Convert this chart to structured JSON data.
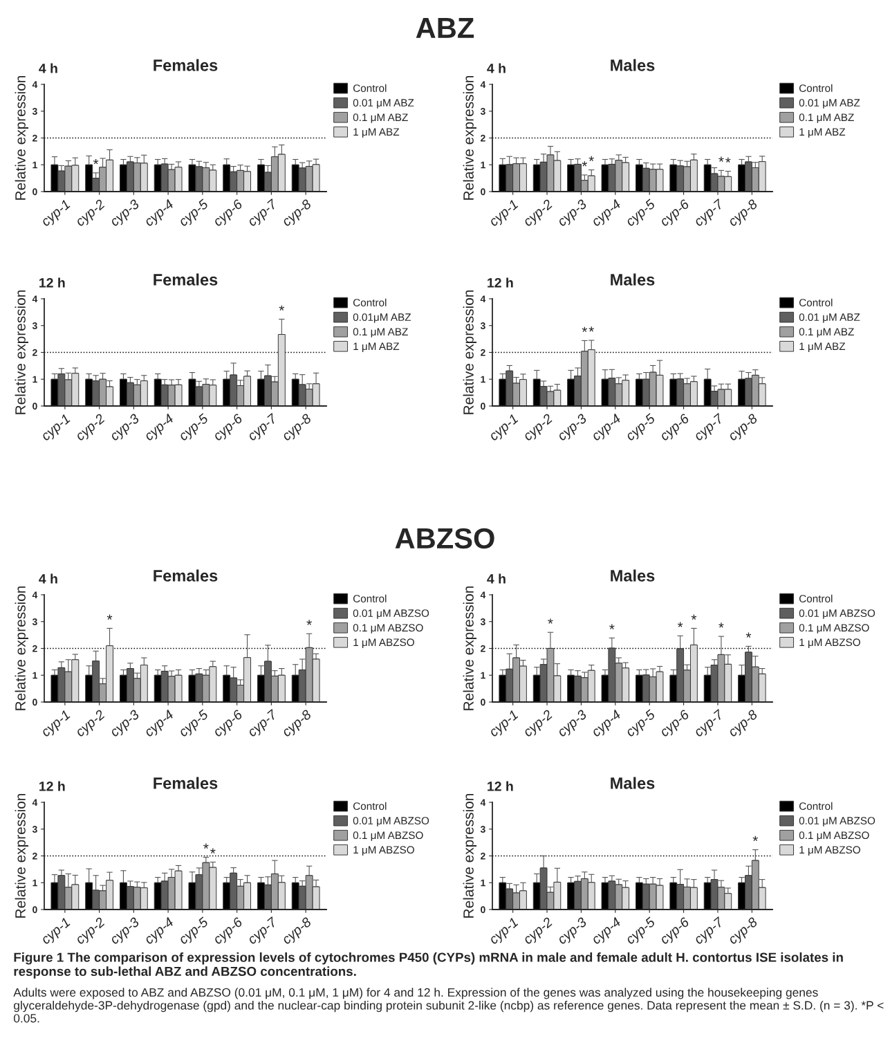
{
  "chart_data": [
    {
      "type": "bar",
      "title": "Females",
      "subtitle": "4 h",
      "ylabel": "Relative expression",
      "annotations": [
        "ABZ"
      ],
      "categories": [
        "cyp-1",
        "cyp-2",
        "cyp-3",
        "cyp-4",
        "cyp-5",
        "cyp-6",
        "cyp-7",
        "cyp-8"
      ],
      "ylim": [
        0,
        4
      ],
      "yticks": [
        0,
        1,
        2,
        3,
        4
      ],
      "grid": false,
      "legend": "right",
      "ref_lines": [
        {
          "axis": "y",
          "value": 2,
          "line_style": "dotted",
          "color": "#000000"
        }
      ],
      "series": [
        {
          "name": "Control",
          "color": "#000000",
          "values": [
            1,
            1,
            1,
            1,
            1,
            1,
            1,
            1
          ],
          "errors": [
            0.3,
            0.33,
            0.2,
            0.2,
            0.2,
            0.22,
            0.2,
            0.2
          ]
        },
        {
          "name": "0.01 μM ABZ",
          "color": "#5f5f5f",
          "values": [
            0.77,
            0.5,
            1.11,
            1.03,
            0.93,
            0.74,
            0.72,
            0.88
          ],
          "errors": [
            0.2,
            0.2,
            0.2,
            0.2,
            0.2,
            0.2,
            0.25,
            0.2
          ],
          "value_labels": [
            null,
            "*",
            null,
            null,
            null,
            null,
            null,
            null
          ]
        },
        {
          "name": "0.1 μM ABZ",
          "color": "#a0a0a0",
          "values": [
            0.95,
            0.91,
            1.07,
            0.82,
            0.89,
            0.79,
            1.3,
            0.94
          ],
          "errors": [
            0.2,
            0.33,
            0.2,
            0.2,
            0.2,
            0.2,
            0.37,
            0.2
          ]
        },
        {
          "name": "1 μM ABZ",
          "color": "#d9d9d9",
          "values": [
            0.98,
            1.18,
            1.06,
            0.91,
            0.8,
            0.75,
            1.39,
            1.01
          ],
          "errors": [
            0.28,
            0.38,
            0.3,
            0.2,
            0.2,
            0.2,
            0.35,
            0.2
          ]
        }
      ]
    },
    {
      "type": "bar",
      "title": "Males",
      "subtitle": "4 h",
      "ylabel": "Relative expression",
      "categories": [
        "cyp-1",
        "cyp-2",
        "cyp-3",
        "cyp-4",
        "cyp-5",
        "cyp-6",
        "cyp-7",
        "cyp-8"
      ],
      "ylim": [
        0,
        4
      ],
      "yticks": [
        0,
        1,
        2,
        3,
        4
      ],
      "grid": false,
      "legend": "right",
      "ref_lines": [
        {
          "axis": "y",
          "value": 2,
          "line_style": "dotted",
          "color": "#000000"
        }
      ],
      "series": [
        {
          "name": "Control",
          "color": "#000000",
          "values": [
            1,
            1,
            1,
            1,
            1,
            1,
            1,
            1
          ],
          "errors": [
            0.23,
            0.2,
            0.2,
            0.2,
            0.2,
            0.2,
            0.2,
            0.2
          ]
        },
        {
          "name": "0.01 μM ABZ",
          "color": "#5f5f5f",
          "values": [
            1.01,
            1.1,
            1.02,
            1.02,
            0.87,
            0.96,
            0.67,
            1.11
          ],
          "errors": [
            0.3,
            0.3,
            0.2,
            0.2,
            0.2,
            0.2,
            0.22,
            0.2
          ]
        },
        {
          "name": "0.1 μM ABZ",
          "color": "#a0a0a0",
          "values": [
            1.04,
            1.37,
            0.42,
            1.17,
            0.83,
            0.93,
            0.57,
            0.89
          ],
          "errors": [
            0.22,
            0.32,
            0.2,
            0.2,
            0.2,
            0.2,
            0.22,
            0.2
          ],
          "value_labels": [
            null,
            null,
            "*",
            null,
            null,
            null,
            "*",
            null
          ]
        },
        {
          "name": "1 μM ABZ",
          "color": "#d9d9d9",
          "values": [
            1.04,
            1.16,
            0.59,
            1.08,
            0.83,
            1.18,
            0.56,
            1.12
          ],
          "errors": [
            0.22,
            0.33,
            0.22,
            0.2,
            0.2,
            0.22,
            0.2,
            0.2
          ],
          "value_labels": [
            null,
            null,
            "*",
            null,
            null,
            null,
            "*",
            null
          ]
        }
      ]
    },
    {
      "type": "bar",
      "title": "Females",
      "subtitle": "12 h",
      "ylabel": "Relative expression",
      "categories": [
        "cyp-1",
        "cyp-2",
        "cyp-3",
        "cyp-4",
        "cyp-5",
        "cyp-6",
        "cyp-7",
        "cyp-8"
      ],
      "ylim": [
        0,
        4
      ],
      "yticks": [
        0,
        1,
        2,
        3,
        4
      ],
      "grid": false,
      "legend": "right",
      "ref_lines": [
        {
          "axis": "y",
          "value": 2,
          "line_style": "dotted",
          "color": "#000000"
        }
      ],
      "series": [
        {
          "name": "Control",
          "color": "#000000",
          "values": [
            1,
            1,
            1,
            1,
            1,
            1,
            1,
            1
          ],
          "errors": [
            0.2,
            0.2,
            0.2,
            0.2,
            0.25,
            0.3,
            0.3,
            0.2
          ]
        },
        {
          "name": "0.01μM ABZ",
          "color": "#5f5f5f",
          "values": [
            1.2,
            0.94,
            0.87,
            0.79,
            0.72,
            1.16,
            1.13,
            0.8
          ],
          "errors": [
            0.2,
            0.2,
            0.2,
            0.2,
            0.2,
            0.44,
            0.4,
            0.37
          ]
        },
        {
          "name": "0.1 μM ABZ",
          "color": "#a0a0a0",
          "values": [
            0.98,
            1.0,
            0.79,
            0.78,
            0.81,
            0.76,
            0.9,
            0.63
          ],
          "errors": [
            0.25,
            0.22,
            0.2,
            0.2,
            0.2,
            0.2,
            0.2,
            0.2
          ]
        },
        {
          "name": "1 μM ABZ",
          "color": "#d9d9d9",
          "values": [
            1.22,
            0.72,
            0.94,
            0.79,
            0.78,
            1.11,
            2.67,
            0.83
          ],
          "errors": [
            0.2,
            0.22,
            0.2,
            0.2,
            0.2,
            0.2,
            0.57,
            0.4
          ],
          "value_labels": [
            null,
            null,
            null,
            null,
            null,
            null,
            "*",
            null
          ]
        }
      ]
    },
    {
      "type": "bar",
      "title": "Males",
      "subtitle": "12 h",
      "ylabel": "Relative expression",
      "categories": [
        "cyp-1",
        "cyp-2",
        "cyp-3",
        "cyp-4",
        "cyp-5",
        "cyp-6",
        "cyp-7",
        "cyp-8"
      ],
      "ylim": [
        0,
        4
      ],
      "yticks": [
        0,
        1,
        2,
        3,
        4
      ],
      "grid": false,
      "legend": "right",
      "ref_lines": [
        {
          "axis": "y",
          "value": 2,
          "line_style": "dotted",
          "color": "#000000"
        }
      ],
      "series": [
        {
          "name": "Control",
          "color": "#000000",
          "values": [
            1,
            1,
            1,
            1,
            1,
            1,
            1,
            1
          ],
          "errors": [
            0.2,
            0.33,
            0.33,
            0.35,
            0.2,
            0.2,
            0.38,
            0.3
          ]
        },
        {
          "name": "0.01 μM ABZ",
          "color": "#5f5f5f",
          "values": [
            1.31,
            0.73,
            1.12,
            1.04,
            1.0,
            1.01,
            0.55,
            1.03
          ],
          "errors": [
            0.2,
            0.2,
            0.3,
            0.32,
            0.25,
            0.2,
            0.2,
            0.22
          ]
        },
        {
          "name": "0.1 μM ABZ",
          "color": "#a0a0a0",
          "values": [
            0.85,
            0.54,
            2.04,
            0.83,
            1.26,
            0.83,
            0.62,
            1.15
          ],
          "errors": [
            0.22,
            0.2,
            0.4,
            0.23,
            0.25,
            0.2,
            0.2,
            0.2
          ],
          "value_labels": [
            null,
            null,
            "*",
            null,
            null,
            null,
            null,
            null
          ]
        },
        {
          "name": "1 μM ABZ",
          "color": "#d9d9d9",
          "values": [
            0.99,
            0.59,
            2.1,
            0.96,
            1.15,
            0.91,
            0.62,
            0.83
          ],
          "errors": [
            0.2,
            0.22,
            0.35,
            0.2,
            0.55,
            0.2,
            0.2,
            0.23
          ],
          "value_labels": [
            null,
            null,
            "*",
            null,
            null,
            null,
            null,
            null
          ]
        }
      ]
    },
    {
      "type": "bar",
      "title": "Females",
      "subtitle": "4 h",
      "ylabel": "Relative expression",
      "annotations": [
        "ABZSO"
      ],
      "categories": [
        "cyp-1",
        "cyp-2",
        "cyp-3",
        "cyp-4",
        "cyp-5",
        "cyp-6",
        "cyp-7",
        "cyp-8"
      ],
      "ylim": [
        0,
        4
      ],
      "yticks": [
        0,
        1,
        2,
        3,
        4
      ],
      "grid": false,
      "legend": "right",
      "ref_lines": [
        {
          "axis": "y",
          "value": 2,
          "line_style": "dotted",
          "color": "#000000"
        }
      ],
      "series": [
        {
          "name": "Control",
          "color": "#000000",
          "values": [
            1,
            1,
            1,
            1,
            1,
            1,
            1,
            1
          ],
          "errors": [
            0.2,
            0.35,
            0.2,
            0.2,
            0.2,
            0.35,
            0.35,
            0.4
          ]
        },
        {
          "name": "0.01 μM ABZSO",
          "color": "#5f5f5f",
          "values": [
            1.28,
            1.53,
            1.25,
            1.15,
            1.05,
            0.9,
            1.52,
            1.2
          ],
          "errors": [
            0.22,
            0.37,
            0.2,
            0.2,
            0.2,
            0.4,
            0.6,
            0.4
          ]
        },
        {
          "name": "0.1 μM ABZSO",
          "color": "#a0a0a0",
          "values": [
            1.13,
            0.68,
            0.88,
            0.96,
            1.0,
            0.63,
            0.97,
            2.03
          ],
          "errors": [
            0.45,
            0.2,
            0.2,
            0.2,
            0.2,
            0.2,
            0.2,
            0.52
          ],
          "value_labels": [
            null,
            null,
            null,
            null,
            null,
            null,
            null,
            "*"
          ]
        },
        {
          "name": "1 μM ABZSO",
          "color": "#d9d9d9",
          "values": [
            1.58,
            2.1,
            1.38,
            1.0,
            1.32,
            1.66,
            1.0,
            1.6
          ],
          "errors": [
            0.2,
            0.65,
            0.27,
            0.2,
            0.2,
            0.85,
            0.25,
            0.2
          ],
          "value_labels": [
            null,
            "*",
            null,
            null,
            null,
            null,
            null,
            null
          ]
        }
      ]
    },
    {
      "type": "bar",
      "title": "Males",
      "subtitle": "4 h",
      "ylabel": "Relative expression",
      "categories": [
        "cyp-1",
        "cyp-2",
        "cyp-3",
        "cyp-4",
        "cyp-5",
        "cyp-6",
        "cyp-7",
        "cyp-8"
      ],
      "ylim": [
        0,
        4
      ],
      "yticks": [
        0,
        1,
        2,
        3,
        4
      ],
      "grid": false,
      "legend": "right",
      "ref_lines": [
        {
          "axis": "y",
          "value": 2,
          "line_style": "dotted",
          "color": "#000000"
        }
      ],
      "series": [
        {
          "name": "Control",
          "color": "#000000",
          "values": [
            1,
            1,
            1,
            1,
            1,
            1,
            1,
            1
          ],
          "errors": [
            0.2,
            0.3,
            0.2,
            0.2,
            0.2,
            0.2,
            0.3,
            0.38
          ]
        },
        {
          "name": "0.01 μM ABZSO",
          "color": "#5f5f5f",
          "values": [
            1.23,
            1.4,
            0.97,
            2.01,
            1.01,
            1.99,
            1.38,
            1.86
          ],
          "errors": [
            0.57,
            0.2,
            0.2,
            0.38,
            0.2,
            0.48,
            0.2,
            0.22
          ],
          "value_labels": [
            null,
            null,
            null,
            "*",
            null,
            "*",
            null,
            "*"
          ]
        },
        {
          "name": "0.1 μM ABZSO",
          "color": "#a0a0a0",
          "values": [
            1.65,
            2.0,
            0.91,
            1.45,
            0.94,
            1.19,
            1.77,
            1.31
          ],
          "errors": [
            0.48,
            0.6,
            0.2,
            0.2,
            0.3,
            0.2,
            0.68,
            0.4
          ],
          "value_labels": [
            null,
            "*",
            null,
            null,
            null,
            null,
            "*",
            null
          ]
        },
        {
          "name": "1 μM ABZSO",
          "color": "#d9d9d9",
          "values": [
            1.34,
            0.98,
            1.18,
            1.27,
            1.13,
            2.13,
            1.41,
            1.05
          ],
          "errors": [
            0.22,
            0.45,
            0.2,
            0.2,
            0.2,
            0.62,
            0.35,
            0.2
          ],
          "value_labels": [
            null,
            null,
            null,
            null,
            null,
            "*",
            null,
            null
          ]
        }
      ]
    },
    {
      "type": "bar",
      "title": "Females",
      "subtitle": "12 h",
      "ylabel": "Relative expression",
      "categories": [
        "cyp-1",
        "cyp-2",
        "cyp-3",
        "cyp-4",
        "cyp-5",
        "cyp-6",
        "cyp-7",
        "cyp-8"
      ],
      "ylim": [
        0,
        4
      ],
      "yticks": [
        0,
        1,
        2,
        3,
        4
      ],
      "grid": false,
      "legend": "right",
      "ref_lines": [
        {
          "axis": "y",
          "value": 2,
          "line_style": "dotted",
          "color": "#000000"
        }
      ],
      "series": [
        {
          "name": "Control",
          "color": "#000000",
          "values": [
            1,
            1,
            1,
            1,
            1,
            1,
            1,
            1
          ],
          "errors": [
            0.3,
            0.52,
            0.45,
            0.2,
            0.4,
            0.2,
            0.2,
            0.2
          ]
        },
        {
          "name": "0.01 μM ABZSO",
          "color": "#5f5f5f",
          "values": [
            1.27,
            0.72,
            0.86,
            1.06,
            1.3,
            1.36,
            0.92,
            0.87
          ],
          "errors": [
            0.2,
            0.55,
            0.2,
            0.3,
            0.25,
            0.2,
            0.3,
            0.2
          ]
        },
        {
          "name": "0.1 μM ABZSO",
          "color": "#a0a0a0",
          "values": [
            0.83,
            0.7,
            0.83,
            1.2,
            1.75,
            0.87,
            1.33,
            1.27
          ],
          "errors": [
            0.5,
            0.2,
            0.2,
            0.3,
            0.2,
            0.25,
            0.5,
            0.35
          ],
          "value_labels": [
            null,
            null,
            null,
            null,
            "*",
            null,
            null,
            null
          ]
        },
        {
          "name": "1 μM ABZSO",
          "color": "#d9d9d9",
          "values": [
            0.93,
            1.09,
            0.81,
            1.44,
            1.57,
            1.0,
            1.01,
            0.85
          ],
          "errors": [
            0.35,
            0.3,
            0.2,
            0.2,
            0.2,
            0.27,
            0.25,
            0.25
          ],
          "value_labels": [
            null,
            null,
            null,
            null,
            "*",
            null,
            null,
            null
          ]
        }
      ]
    },
    {
      "type": "bar",
      "title": "Males",
      "subtitle": "12 h",
      "ylabel": "Relative expression",
      "annotations": [
        "Figure 1 The comparison of expression levels of cytochromes P450 (CYPs) mRNA in male and female adult H. contortus ISE isolates in response to sub-lethal ABZ and ABZSO concentrations.",
        "Adults were exposed to ABZ and ABZSO (0.01 μM, 0.1 μM, 1 μM) for 4 and 12 h. Expression of the genes was analyzed using the housekeeping genes glyceraldehyde-3P-dehydrogenase (gpd) and the nuclear-cap binding protein subunit 2-like (ncbp) as reference genes. Data represent the mean ± S.D. (n = 3). *P < 0.05."
      ],
      "categories": [
        "cyp-1",
        "cyp-2",
        "cyp-3",
        "cyp-4",
        "cyp-5",
        "cyp-6",
        "cyp-7",
        "cyp-8"
      ],
      "ylim": [
        0,
        4
      ],
      "yticks": [
        0,
        1,
        2,
        3,
        4
      ],
      "grid": false,
      "legend": "right",
      "ref_lines": [
        {
          "axis": "y",
          "value": 2,
          "line_style": "dotted",
          "color": "#000000"
        }
      ],
      "series": [
        {
          "name": "Control",
          "color": "#000000",
          "values": [
            1,
            1,
            1,
            1,
            1,
            1,
            1,
            1
          ],
          "errors": [
            0.2,
            0.33,
            0.2,
            0.2,
            0.2,
            0.2,
            0.2,
            0.2
          ]
        },
        {
          "name": "0.01 μM ABZSO",
          "color": "#5f5f5f",
          "values": [
            0.77,
            1.55,
            1.05,
            1.06,
            0.95,
            0.94,
            1.12,
            1.27
          ],
          "errors": [
            0.2,
            0.45,
            0.2,
            0.2,
            0.2,
            0.55,
            0.35,
            0.35
          ]
        },
        {
          "name": "0.1 μM ABZSO",
          "color": "#a0a0a0",
          "values": [
            0.62,
            0.64,
            1.15,
            0.93,
            0.95,
            0.84,
            0.83,
            1.83
          ],
          "errors": [
            0.3,
            0.2,
            0.25,
            0.2,
            0.25,
            0.3,
            0.25,
            0.4
          ],
          "value_labels": [
            null,
            null,
            null,
            null,
            null,
            null,
            null,
            "*"
          ]
        },
        {
          "name": "1 μM ABZSO",
          "color": "#d9d9d9",
          "values": [
            0.7,
            1.02,
            1.01,
            0.82,
            0.9,
            0.82,
            0.6,
            0.82
          ],
          "errors": [
            0.3,
            0.52,
            0.3,
            0.25,
            0.25,
            0.3,
            0.2,
            0.3
          ]
        }
      ]
    }
  ]
}
